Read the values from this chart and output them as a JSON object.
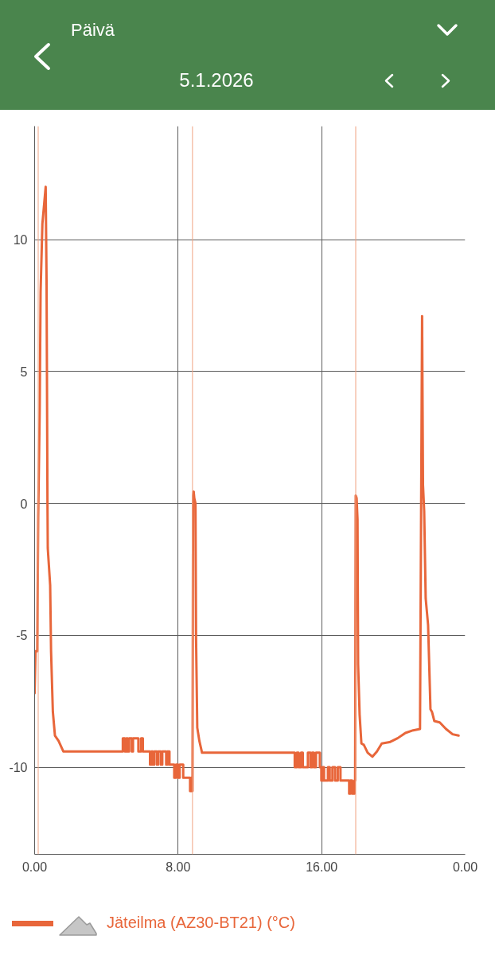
{
  "chart_data": {
    "type": "line",
    "title": "Päivä",
    "subtitle": "5.1.2026",
    "x": [
      "2026-01-05T00:00",
      "2026-01-05T00:03",
      "2026-01-05T00:09",
      "2026-01-05T00:12",
      "2026-01-05T00:17",
      "2026-01-05T00:20",
      "2026-01-05T00:26",
      "2026-01-05T00:37",
      "2026-01-05T00:40",
      "2026-01-05T00:43",
      "2026-01-05T00:44",
      "2026-01-05T00:52",
      "2026-01-05T00:55",
      "2026-01-05T01:01",
      "2026-01-05T01:08",
      "2026-01-05T01:20",
      "2026-01-05T01:36",
      "2026-01-05T04:55",
      "2026-01-05T04:55",
      "2026-01-05T05:02",
      "2026-01-05T05:02",
      "2026-01-05T05:07",
      "2026-01-05T05:07",
      "2026-01-05T05:11",
      "2026-01-05T05:11",
      "2026-01-05T05:16",
      "2026-01-05T05:16",
      "2026-01-05T05:25",
      "2026-01-05T05:25",
      "2026-01-05T05:29",
      "2026-01-05T05:29",
      "2026-01-05T05:47",
      "2026-01-05T05:47",
      "2026-01-05T05:56",
      "2026-01-05T05:56",
      "2026-01-05T06:02",
      "2026-01-05T06:02",
      "2026-01-05T06:26",
      "2026-01-05T06:26",
      "2026-01-05T06:31",
      "2026-01-05T06:31",
      "2026-01-05T06:35",
      "2026-01-05T06:35",
      "2026-01-05T06:40",
      "2026-01-05T06:40",
      "2026-01-05T06:49",
      "2026-01-05T06:49",
      "2026-01-05T06:53",
      "2026-01-05T06:53",
      "2026-01-05T07:02",
      "2026-01-05T07:02",
      "2026-01-05T07:07",
      "2026-01-05T07:07",
      "2026-01-05T07:20",
      "2026-01-05T07:20",
      "2026-01-05T07:24",
      "2026-01-05T07:24",
      "2026-01-05T07:31",
      "2026-01-05T07:31",
      "2026-01-05T07:47",
      "2026-01-05T07:47",
      "2026-01-05T07:53",
      "2026-01-05T07:53",
      "2026-01-05T08:00",
      "2026-01-05T08:00",
      "2026-01-05T08:05",
      "2026-01-05T08:05",
      "2026-01-05T08:17",
      "2026-01-05T08:17",
      "2026-01-05T08:40",
      "2026-01-05T08:40",
      "2026-01-05T08:43",
      "2026-01-05T08:43",
      "2026-01-05T08:45",
      "2026-01-05T08:45",
      "2026-01-05T08:48",
      "2026-01-05T08:50",
      "2026-01-05T08:52",
      "2026-01-05T08:54",
      "2026-01-05T08:58",
      "2026-01-05T09:00",
      "2026-01-05T09:04",
      "2026-01-05T09:11",
      "2026-01-05T09:20",
      "2026-01-05T14:30",
      "2026-01-05T14:30",
      "2026-01-05T14:37",
      "2026-01-05T14:37",
      "2026-01-05T14:43",
      "2026-01-05T14:43",
      "2026-01-05T14:51",
      "2026-01-05T14:51",
      "2026-01-05T14:57",
      "2026-01-05T14:57",
      "2026-01-05T15:14",
      "2026-01-05T15:14",
      "2026-01-05T15:23",
      "2026-01-05T15:23",
      "2026-01-05T15:28",
      "2026-01-05T15:28",
      "2026-01-05T15:34",
      "2026-01-05T15:34",
      "2026-01-05T15:41",
      "2026-01-05T15:41",
      "2026-01-05T15:54",
      "2026-01-05T15:54",
      "2026-01-05T15:59",
      "2026-01-05T15:59",
      "2026-01-05T16:03",
      "2026-01-05T16:03",
      "2026-01-05T16:08",
      "2026-01-05T16:08",
      "2026-01-05T16:21",
      "2026-01-05T16:21",
      "2026-01-05T16:27",
      "2026-01-05T16:27",
      "2026-01-05T16:36",
      "2026-01-05T16:36",
      "2026-01-05T16:45",
      "2026-01-05T16:45",
      "2026-01-05T16:54",
      "2026-01-05T16:54",
      "2026-01-05T17:03",
      "2026-01-05T17:03",
      "2026-01-05T17:32",
      "2026-01-05T17:32",
      "2026-01-05T17:36",
      "2026-01-05T17:36",
      "2026-01-05T17:42",
      "2026-01-05T17:42",
      "2026-01-05T17:50",
      "2026-01-05T17:50",
      "2026-01-05T17:52",
      "2026-01-05T17:54",
      "2026-01-05T17:57",
      "2026-01-05T18:00",
      "2026-01-05T18:02",
      "2026-01-05T18:07",
      "2026-01-05T18:13",
      "2026-01-05T18:21",
      "2026-01-05T18:34",
      "2026-01-05T18:50",
      "2026-01-05T19:05",
      "2026-01-05T19:21",
      "2026-01-05T19:47",
      "2026-01-05T20:14",
      "2026-01-05T20:40",
      "2026-01-05T21:06",
      "2026-01-05T21:29",
      "2026-01-05T21:36",
      "2026-01-05T21:39",
      "2026-01-05T21:43",
      "2026-01-05T21:48",
      "2026-01-05T21:56",
      "2026-01-05T22:04",
      "2026-01-05T22:09",
      "2026-01-05T22:17",
      "2026-01-05T22:35",
      "2026-01-05T22:56",
      "2026-01-05T23:18",
      "2026-01-05T23:38"
    ],
    "series": [
      {
        "name": "Jäteilma (AZ30-BT21) (°C)",
        "color": "#e8663a",
        "values": [
          -7.2,
          -5.6,
          -5.6,
          -0.5,
          3.5,
          8.0,
          10.6,
          12.0,
          8.3,
          0.0,
          -1.7,
          -3.1,
          -5.6,
          -7.9,
          -8.8,
          -9.0,
          -9.4,
          -9.4,
          -8.9,
          -8.9,
          -9.4,
          -9.4,
          -8.9,
          -8.9,
          -9.4,
          -9.4,
          -8.9,
          -8.9,
          -9.4,
          -9.4,
          -8.9,
          -8.9,
          -9.4,
          -9.4,
          -8.9,
          -8.9,
          -9.4,
          -9.4,
          -9.9,
          -9.9,
          -9.4,
          -9.4,
          -9.9,
          -9.9,
          -9.4,
          -9.4,
          -9.9,
          -9.9,
          -9.4,
          -9.4,
          -9.9,
          -9.9,
          -9.4,
          -9.4,
          -9.9,
          -9.9,
          -9.4,
          -9.4,
          -9.9,
          -9.9,
          -10.4,
          -10.4,
          -9.9,
          -9.9,
          -10.4,
          -10.4,
          -9.9,
          -9.9,
          -10.4,
          -10.4,
          -10.9,
          -10.9,
          -10.4,
          -10.4,
          -10.9,
          -10.9,
          0.3,
          0.45,
          0.2,
          0.0,
          -5.1,
          -8.5,
          -9.0,
          -9.45,
          -9.45,
          -10.0,
          -10.0,
          -9.45,
          -9.45,
          -10.0,
          -10.0,
          -9.45,
          -9.45,
          -10.0,
          -10.0,
          -9.45,
          -9.45,
          -10.0,
          -10.0,
          -9.45,
          -9.45,
          -10.0,
          -10.0,
          -9.45,
          -9.45,
          -10.0,
          -10.0,
          -10.5,
          -10.5,
          -10.0,
          -10.0,
          -10.5,
          -10.5,
          -10.0,
          -10.0,
          -10.5,
          -10.5,
          -10.0,
          -10.0,
          -10.5,
          -10.5,
          -10.0,
          -10.0,
          -10.5,
          -10.5,
          -11.0,
          -11.0,
          -10.5,
          -10.5,
          -11.0,
          -11.0,
          -10.5,
          -10.5,
          0.3,
          0.2,
          -0.6,
          -6.1,
          -8.0,
          -9.1,
          -9.15,
          -9.45,
          -9.6,
          -9.4,
          -9.1,
          -9.05,
          -8.9,
          -8.7,
          -8.6,
          -8.55,
          7.1,
          0.7,
          -0.3,
          -3.6,
          -4.6,
          -7.8,
          -7.9,
          -8.25,
          -8.3,
          -8.55,
          -8.75,
          -8.8
        ]
      }
    ],
    "xlim": [
      "2026-01-05T00:00",
      "2026-01-06T00:00"
    ],
    "xticks": [
      {
        "value": "2026-01-05T00:00",
        "label": "0.00"
      },
      {
        "value": "2026-01-05T08:00",
        "label": "8.00"
      },
      {
        "value": "2026-01-05T16:00",
        "label": "16.00"
      },
      {
        "value": "2026-01-06T00:00",
        "label": "0.00"
      }
    ],
    "ylim": [
      -13.3,
      14.3
    ],
    "yticks": [
      -10,
      -5,
      0,
      5,
      10
    ],
    "grid": true,
    "legend": "bottom",
    "line_style": "solid",
    "ref_lines": [
      {
        "axis": "x",
        "value": "2026-01-05T00:12",
        "color": "#f0a382"
      },
      {
        "axis": "x",
        "value": "2026-01-05T08:48",
        "color": "#f0a382"
      },
      {
        "axis": "x",
        "value": "2026-01-05T17:54",
        "color": "#f0a382"
      }
    ]
  }
}
